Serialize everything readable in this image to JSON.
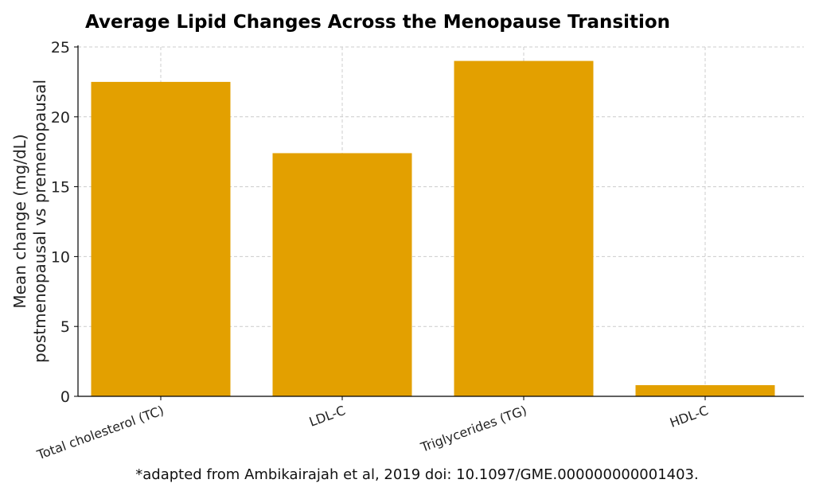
{
  "chart_data": {
    "type": "bar",
    "title": "Average Lipid Changes Across the Menopause Transition",
    "xlabel": "",
    "ylabel": [
      "Mean change (mg/dL)",
      "postmenopausal vs premenopausal"
    ],
    "categories": [
      "Total cholesterol (TC)",
      "LDL-C",
      "Triglycerides (TG)",
      "HDL-C"
    ],
    "values": [
      22.5,
      17.4,
      24.0,
      0.8
    ],
    "ylim": [
      0,
      25
    ],
    "yticks": [
      0,
      5,
      10,
      15,
      20,
      25
    ],
    "grid": true,
    "bar_color": "#E3A000",
    "footnote": "*adapted from Ambikairajah et al, 2019 doi: 10.1097/GME.000000000001403."
  }
}
